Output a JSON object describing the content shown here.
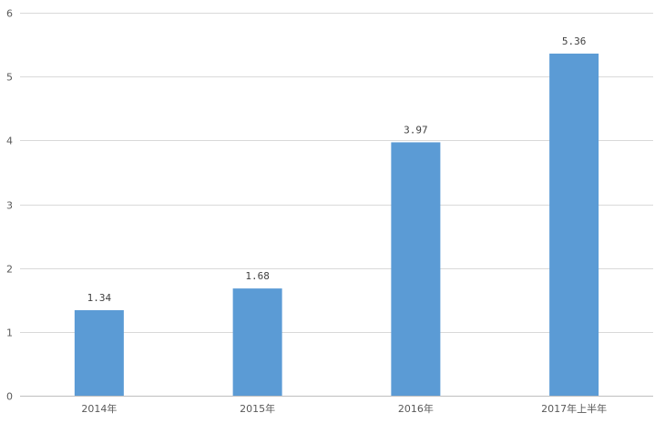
{
  "chart_data": {
    "type": "bar",
    "categories": [
      "2014年",
      "2015年",
      "2016年",
      "2017年上半年"
    ],
    "values": [
      1.34,
      1.68,
      3.97,
      5.36
    ],
    "data_labels": [
      "1.34",
      "1.68",
      "3.97",
      "5.36"
    ],
    "y_ticks": [
      "0",
      "1",
      "2",
      "3",
      "4",
      "5",
      "6"
    ],
    "ylim": [
      0,
      6
    ],
    "title": "",
    "xlabel": "",
    "ylabel": "",
    "grid": true,
    "bar_color": "#5b9bd5"
  }
}
